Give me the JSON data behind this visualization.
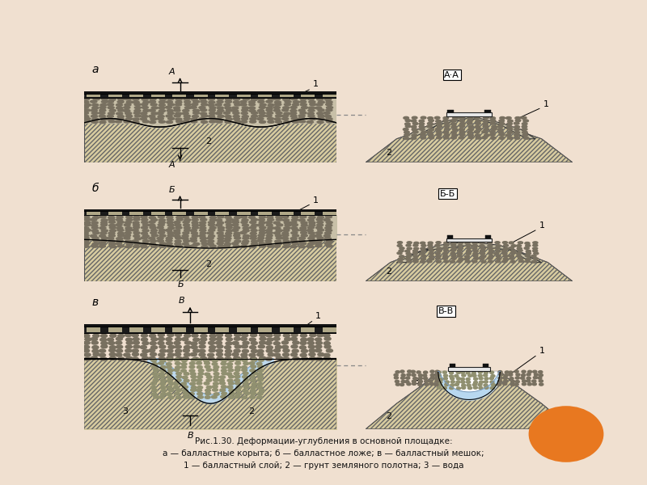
{
  "bg_color": "#f0e0d0",
  "panel_bg": "#ffffff",
  "title_line1": "Рис.1.30. Деформации-углубления в основной площадке:",
  "title_line2": "а — балластные корыта; б — балластное ложе; в — балластный мешок;",
  "title_line3": "1 — балластный слой; 2 — грунт земляного полотна; 3 — вода",
  "ground_face": "#d8cca0",
  "ground_hatch": "/////",
  "ballast_face": "#c8c0a8",
  "tie_face": "#222222",
  "water_face": "#b8d8f0",
  "orange_circle": "#e87820",
  "label_a": "а",
  "label_b": "б",
  "label_v": "в",
  "label_AA": "А·А",
  "label_BB": "Б-Б",
  "label_VV": "В-В"
}
